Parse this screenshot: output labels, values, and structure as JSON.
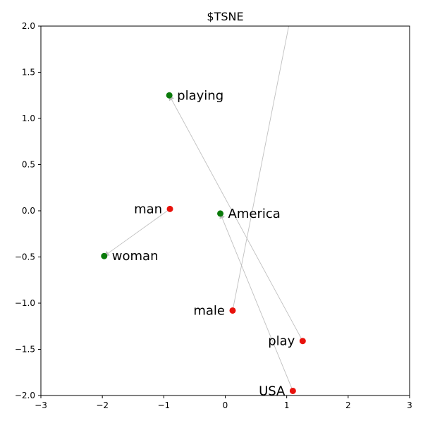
{
  "chart_data": {
    "type": "scatter",
    "title": "$TSNE",
    "xlim": [
      -3,
      3
    ],
    "ylim": [
      -2,
      2
    ],
    "xticks": [
      -3,
      -2,
      -1,
      0,
      1,
      2,
      3
    ],
    "yticks": [
      -2.0,
      -1.5,
      -1.0,
      -0.5,
      0.0,
      0.5,
      1.0,
      1.5,
      2.0
    ],
    "xtick_labels": [
      "−3",
      "−2",
      "−1",
      "0",
      "1",
      "2",
      "3"
    ],
    "ytick_labels": [
      "−2.0",
      "−1.5",
      "−1.0",
      "−0.5",
      "0.0",
      "0.5",
      "1.0",
      "1.5",
      "2.0"
    ],
    "grid": false,
    "colors": {
      "red": "#e8120c",
      "green": "#0a7a0a",
      "arrow": "#c0c0c0"
    },
    "points": [
      {
        "label": "man",
        "x": -0.9,
        "y": 0.02,
        "color": "red",
        "label_side": "left"
      },
      {
        "label": "woman",
        "x": -1.97,
        "y": -0.49,
        "color": "green",
        "label_side": "right"
      },
      {
        "label": "playing",
        "x": -0.91,
        "y": 1.25,
        "color": "green",
        "label_side": "right"
      },
      {
        "label": "America",
        "x": -0.08,
        "y": -0.03,
        "color": "green",
        "label_side": "right"
      },
      {
        "label": "male",
        "x": 0.12,
        "y": -1.08,
        "color": "red",
        "label_side": "left"
      },
      {
        "label": "play",
        "x": 1.26,
        "y": -1.41,
        "color": "red",
        "label_side": "left"
      },
      {
        "label": "USA",
        "x": 1.1,
        "y": -1.95,
        "color": "red",
        "label_side": "left"
      }
    ],
    "arrows": [
      {
        "from": [
          -0.9,
          0.02
        ],
        "to": [
          -1.97,
          -0.49
        ]
      },
      {
        "from": [
          1.26,
          -1.41
        ],
        "to": [
          -0.91,
          1.25
        ]
      },
      {
        "from": [
          1.1,
          -1.95
        ],
        "to": [
          -0.08,
          -0.03
        ]
      },
      {
        "from": [
          0.12,
          -1.08
        ],
        "to": [
          1.3,
          2.9
        ]
      }
    ]
  }
}
